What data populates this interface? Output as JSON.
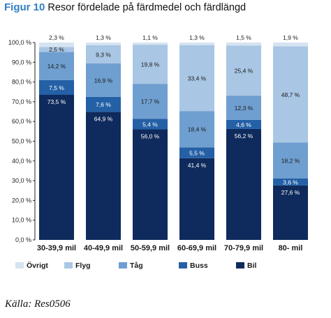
{
  "figure": {
    "number": "Figur 10",
    "title": "Resor fördelade på färdmedel och färdlängd"
  },
  "source": "Källa: Res0506",
  "colors": {
    "Övrigt": "#d6e3f1",
    "Flyg": "#a9c6e4",
    "Tåg": "#6f9fd0",
    "Buss": "#2460a6",
    "Bil": "#0f2a5c"
  },
  "chart_data": {
    "type": "bar",
    "stacked": true,
    "categories": [
      "30-39,9 mil",
      "40-49,9 mil",
      "50-59,9 mil",
      "60-69,9 mil",
      "70-79,9 mil",
      "80- mil"
    ],
    "series": [
      {
        "name": "Bil",
        "values": [
          73.5,
          64.9,
          56.0,
          41.4,
          56.2,
          27.6
        ],
        "labels": [
          "73,5 %",
          "64,9 %",
          "56,0 %",
          "41,4 %",
          "56,2 %",
          "27,6 %"
        ]
      },
      {
        "name": "Buss",
        "values": [
          7.5,
          7.6,
          5.4,
          5.5,
          4.6,
          3.6
        ],
        "labels": [
          "7,5 %",
          "7,6 %",
          "5,4 %",
          "5,5 %",
          "4,6 %",
          "3,6 %"
        ]
      },
      {
        "name": "Tåg",
        "values": [
          14.2,
          16.9,
          17.7,
          18.4,
          12.3,
          18.2
        ],
        "labels": [
          "14,2 %",
          "16,9 %",
          "17,7 %",
          "18,4 %",
          "12,3 %",
          "18,2 %"
        ]
      },
      {
        "name": "Flyg",
        "values": [
          2.5,
          9.3,
          19.8,
          33.4,
          25.4,
          48.7
        ],
        "labels": [
          "2,5 %",
          "9,3 %",
          "19,8 %",
          "33,4 %",
          "25,4 %",
          "48,7 %"
        ]
      },
      {
        "name": "Övrigt",
        "values": [
          2.3,
          1.3,
          1.1,
          1.3,
          1.5,
          1.9
        ],
        "labels": [
          "2,3 %",
          "1,3 %",
          "1,1 %",
          "1,3 %",
          "1,5 %",
          "1,9 %"
        ]
      }
    ],
    "legend": [
      "Övrigt",
      "Flyg",
      "Tåg",
      "Buss",
      "Bil"
    ],
    "legend_position": "bottom",
    "ylim": [
      0,
      100
    ],
    "yticks": [
      "0,0 %",
      "10,0 %",
      "20,0 %",
      "30,0 %",
      "40,0 %",
      "50,0 %",
      "60,0 %",
      "70,0 %",
      "80,0 %",
      "90,0 %",
      "100,0 %"
    ],
    "grid": false
  }
}
